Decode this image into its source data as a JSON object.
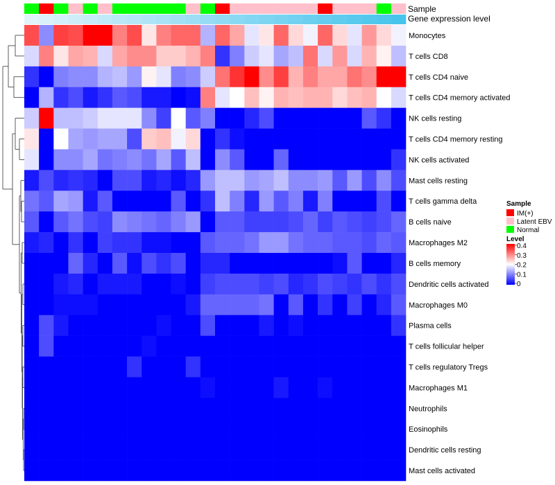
{
  "chart_data": {
    "type": "heatmap",
    "title": "",
    "annotation_titles": {
      "sample": "Sample",
      "expression": "Gene expression level"
    },
    "columns": 26,
    "sample_annotation": [
      "Normal",
      "IM(+)",
      "Normal",
      "Latent EBV",
      "Normal",
      "Latent EBV",
      "Normal",
      "Normal",
      "Normal",
      "Normal",
      "Normal",
      "Latent EBV",
      "Normal",
      "IM(+)",
      "Latent EBV",
      "Latent EBV",
      "Latent EBV",
      "Latent EBV",
      "Latent EBV",
      "Latent EBV",
      "IM(+)",
      "Latent EBV",
      "Latent EBV",
      "Latent EBV",
      "Normal",
      "Latent EBV"
    ],
    "expression_annotation": [
      0.0,
      0.04,
      0.08,
      0.12,
      0.16,
      0.2,
      0.24,
      0.28,
      0.32,
      0.36,
      0.4,
      0.44,
      0.48,
      0.52,
      0.56,
      0.6,
      0.64,
      0.68,
      0.72,
      0.76,
      0.8,
      0.84,
      0.88,
      0.92,
      0.96,
      1.0
    ],
    "rows": [
      "Monocytes",
      "T cells CD8",
      "T cells CD4 naive",
      "T cells CD4 memory activated",
      "NK cells resting",
      "T cells CD4 memory resting",
      "NK cells activated",
      "Mast cells resting",
      "T cells gamma delta",
      "B cells naive",
      "Macrophages M2",
      "B cells memory",
      "Dendritic cells activated",
      "Macrophages M0",
      "Plasma cells",
      "T cells follicular helper",
      "T cells regulatory  Tregs",
      "Macrophages M1",
      "Neutrophils",
      "Eosinophils",
      "Dendritic cells resting",
      "Mast cells activated"
    ],
    "values": [
      [
        0.34,
        0.11,
        0.35,
        0.34,
        0.4,
        0.4,
        0.3,
        0.34,
        0.22,
        0.3,
        0.32,
        0.32,
        0.14,
        0.32,
        0.27,
        0.18,
        0.22,
        0.32,
        0.23,
        0.19,
        0.32,
        0.23,
        0.18,
        0.28,
        0.23,
        0.19
      ],
      [
        0.17,
        0.3,
        0.22,
        0.27,
        0.26,
        0.17,
        0.27,
        0.29,
        0.29,
        0.24,
        0.24,
        0.26,
        0.3,
        0.04,
        0.1,
        0.16,
        0.18,
        0.13,
        0.15,
        0.31,
        0.17,
        0.28,
        0.17,
        0.26,
        0.21,
        0.15
      ],
      [
        0.04,
        0.0,
        0.1,
        0.11,
        0.11,
        0.14,
        0.15,
        0.12,
        0.21,
        0.18,
        0.1,
        0.11,
        0.16,
        0.31,
        0.36,
        0.4,
        0.29,
        0.35,
        0.26,
        0.3,
        0.27,
        0.27,
        0.31,
        0.29,
        0.4,
        0.4
      ],
      [
        0.0,
        0.14,
        0.04,
        0.06,
        0.02,
        0.04,
        0.07,
        0.06,
        0.02,
        0.02,
        0.0,
        0.01,
        0.3,
        0.18,
        0.2,
        0.25,
        0.21,
        0.26,
        0.25,
        0.26,
        0.26,
        0.23,
        0.25,
        0.26,
        0.2,
        0.17
      ],
      [
        0.16,
        0.4,
        0.15,
        0.15,
        0.16,
        0.18,
        0.18,
        0.18,
        0.11,
        0.05,
        0.2,
        0.07,
        0.1,
        0.0,
        0.0,
        0.03,
        0.06,
        0.0,
        0.0,
        0.0,
        0.0,
        0.0,
        0.0,
        0.07,
        0.04,
        0.0
      ],
      [
        0.22,
        0.0,
        0.2,
        0.13,
        0.12,
        0.13,
        0.13,
        0.06,
        0.24,
        0.25,
        0.19,
        0.23,
        0.0,
        0.04,
        0.01,
        0.0,
        0.0,
        0.0,
        0.0,
        0.0,
        0.0,
        0.0,
        0.0,
        0.0,
        0.0,
        0.0
      ],
      [
        0.18,
        0.0,
        0.11,
        0.11,
        0.13,
        0.09,
        0.1,
        0.11,
        0.09,
        0.13,
        0.07,
        0.15,
        0.0,
        0.11,
        0.07,
        0.0,
        0.0,
        0.08,
        0.0,
        0.0,
        0.0,
        0.0,
        0.0,
        0.0,
        0.0,
        0.04
      ],
      [
        0.02,
        0.06,
        0.03,
        0.04,
        0.03,
        0.0,
        0.06,
        0.06,
        0.02,
        0.03,
        0.01,
        0.03,
        0.12,
        0.15,
        0.15,
        0.12,
        0.13,
        0.15,
        0.11,
        0.11,
        0.12,
        0.07,
        0.12,
        0.06,
        0.11,
        0.06
      ],
      [
        0.09,
        0.07,
        0.13,
        0.12,
        0.02,
        0.07,
        0.0,
        0.0,
        0.0,
        0.0,
        0.07,
        0.0,
        0.04,
        0.15,
        0.1,
        0.03,
        0.12,
        0.07,
        0.1,
        0.02,
        0.1,
        0.0,
        0.0,
        0.0,
        0.06,
        0.0
      ],
      [
        0.07,
        0.0,
        0.07,
        0.09,
        0.06,
        0.05,
        0.11,
        0.1,
        0.09,
        0.08,
        0.1,
        0.12,
        0.0,
        0.07,
        0.07,
        0.05,
        0.05,
        0.05,
        0.06,
        0.08,
        0.05,
        0.07,
        0.06,
        0.05,
        0.06,
        0.08
      ],
      [
        0.02,
        0.03,
        0.0,
        0.04,
        0.0,
        0.05,
        0.04,
        0.04,
        0.01,
        0.01,
        0.0,
        0.0,
        0.07,
        0.08,
        0.08,
        0.09,
        0.12,
        0.12,
        0.09,
        0.08,
        0.08,
        0.07,
        0.07,
        0.06,
        0.08,
        0.07
      ],
      [
        0.0,
        0.0,
        0.0,
        0.08,
        0.03,
        0.0,
        0.07,
        0.01,
        0.06,
        0.04,
        0.06,
        0.0,
        0.03,
        0.03,
        0.0,
        0.0,
        0.0,
        0.0,
        0.0,
        0.0,
        0.0,
        0.01,
        0.07,
        0.0,
        0.0,
        0.03
      ],
      [
        0.0,
        0.0,
        0.02,
        0.03,
        0.0,
        0.02,
        0.02,
        0.02,
        0.0,
        0.0,
        0.01,
        0.0,
        0.05,
        0.06,
        0.06,
        0.06,
        0.05,
        0.06,
        0.03,
        0.04,
        0.06,
        0.05,
        0.04,
        0.06,
        0.04,
        0.06
      ],
      [
        0.0,
        0.0,
        0.01,
        0.01,
        0.01,
        0.0,
        0.0,
        0.0,
        0.0,
        0.0,
        0.0,
        0.02,
        0.08,
        0.08,
        0.08,
        0.08,
        0.09,
        0.0,
        0.07,
        0.0,
        0.04,
        0.0,
        0.05,
        0.0,
        0.03,
        0.07
      ],
      [
        0.0,
        0.06,
        0.02,
        0.0,
        0.0,
        0.0,
        0.0,
        0.0,
        0.0,
        0.01,
        0.0,
        0.0,
        0.06,
        0.0,
        0.0,
        0.0,
        0.02,
        0.0,
        0.01,
        0.0,
        0.0,
        0.0,
        0.0,
        0.0,
        0.0,
        0.04
      ],
      [
        0.0,
        0.06,
        0.0,
        0.0,
        0.0,
        0.0,
        0.0,
        0.0,
        0.01,
        0.0,
        0.0,
        0.0,
        0.0,
        0.0,
        0.0,
        0.0,
        0.0,
        0.0,
        0.0,
        0.0,
        0.0,
        0.0,
        0.0,
        0.0,
        0.0,
        0.0
      ],
      [
        0.0,
        0.0,
        0.0,
        0.0,
        0.0,
        0.0,
        0.0,
        0.04,
        0.0,
        0.0,
        0.0,
        0.04,
        0.0,
        0.0,
        0.0,
        0.0,
        0.0,
        0.0,
        0.0,
        0.0,
        0.0,
        0.0,
        0.0,
        0.0,
        0.0,
        0.0
      ],
      [
        0.0,
        0.0,
        0.0,
        0.0,
        0.0,
        0.0,
        0.0,
        0.0,
        0.0,
        0.0,
        0.0,
        0.0,
        0.01,
        0.0,
        0.0,
        0.0,
        0.0,
        0.02,
        0.0,
        0.0,
        0.01,
        0.0,
        0.0,
        0.0,
        0.0,
        0.0
      ],
      [
        0.0,
        0.0,
        0.0,
        0.0,
        0.0,
        0.0,
        0.0,
        0.0,
        0.0,
        0.0,
        0.0,
        0.0,
        0.0,
        0.0,
        0.0,
        0.0,
        0.0,
        0.0,
        0.0,
        0.0,
        0.0,
        0.0,
        0.0,
        0.0,
        0.0,
        0.0
      ],
      [
        0.0,
        0.0,
        0.0,
        0.0,
        0.0,
        0.0,
        0.0,
        0.0,
        0.0,
        0.0,
        0.0,
        0.0,
        0.0,
        0.0,
        0.0,
        0.0,
        0.0,
        0.0,
        0.0,
        0.0,
        0.0,
        0.0,
        0.0,
        0.0,
        0.0,
        0.0
      ],
      [
        0.0,
        0.0,
        0.0,
        0.0,
        0.0,
        0.0,
        0.0,
        0.0,
        0.0,
        0.0,
        0.0,
        0.0,
        0.0,
        0.0,
        0.0,
        0.0,
        0.0,
        0.0,
        0.0,
        0.0,
        0.0,
        0.0,
        0.0,
        0.0,
        0.0,
        0.0
      ],
      [
        0.0,
        0.0,
        0.0,
        0.0,
        0.0,
        0.0,
        0.0,
        0.0,
        0.0,
        0.0,
        0.0,
        0.0,
        0.0,
        0.0,
        0.0,
        0.0,
        0.0,
        0.0,
        0.0,
        0.0,
        0.0,
        0.0,
        0.0,
        0.0,
        0.0,
        0.0
      ]
    ],
    "color_scale": {
      "min": 0.0,
      "mid": 0.2,
      "max": 0.4,
      "low_color": "#0000ff",
      "mid_color": "#ffffff",
      "high_color": "#ff0000"
    },
    "expression_scale": {
      "low_color": "#e0f3fb",
      "high_color": "#47c4ec"
    },
    "legend": {
      "placement": "right",
      "sample_title": "Sample",
      "sample_items": [
        {
          "label": "IM(+)",
          "color": "#ff0000"
        },
        {
          "label": "Latent EBV",
          "color": "#ffc0cb"
        },
        {
          "label": "Normal",
          "color": "#00ff00"
        }
      ],
      "level_title": "Level",
      "level_ticks": [
        "0.4",
        "0.3",
        "0.2",
        "0.1",
        "0"
      ]
    },
    "row_dendrogram": true
  }
}
